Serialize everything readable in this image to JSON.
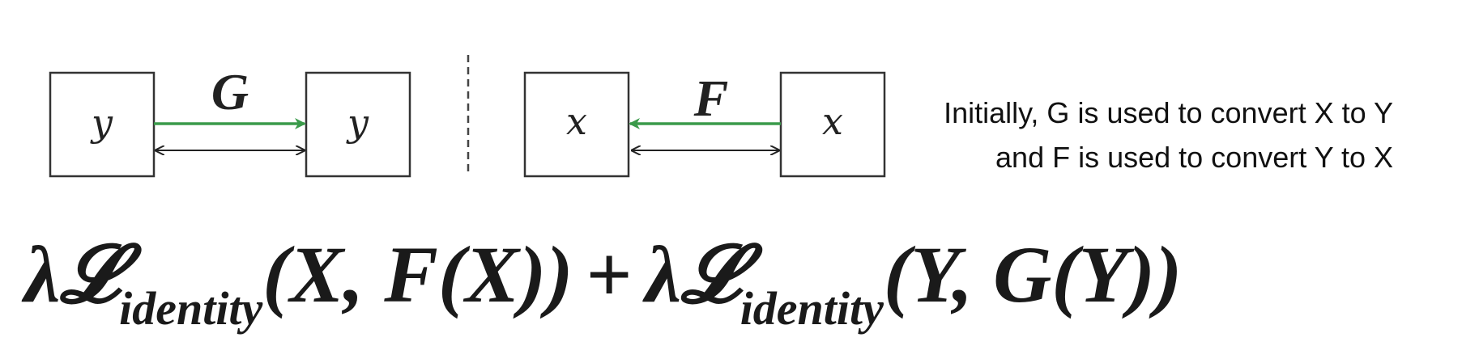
{
  "left_panel": {
    "input_box": "y",
    "output_box": "y",
    "function": "G",
    "arrow_color": "#3a9a4a"
  },
  "right_panel": {
    "input_box": "x",
    "output_box": "x",
    "function": "F",
    "arrow_color": "#3a9a4a"
  },
  "caption": {
    "line1": "Initially, G is used to convert X to Y",
    "line2": "and F is used to convert Y to X"
  },
  "formula": {
    "term1_prefix": "λ𝓛",
    "term1_sub": "identity",
    "term1_args": "(X, F(X))",
    "plus": "+",
    "term2_prefix": "λ𝓛",
    "term2_sub": "identity",
    "term2_args": "(Y, G(Y))"
  }
}
